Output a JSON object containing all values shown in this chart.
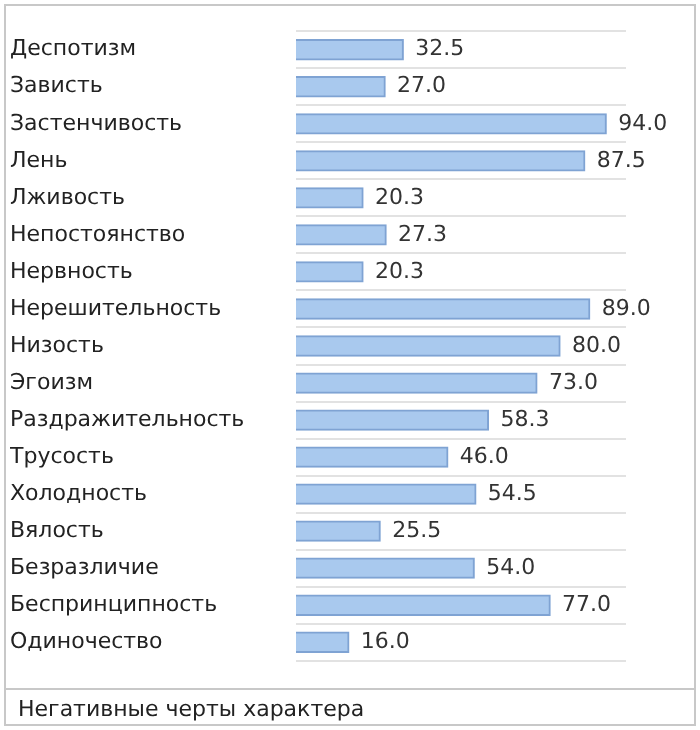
{
  "chart_data": {
    "type": "bar",
    "orientation": "horizontal",
    "categories": [
      "Деспотизм",
      "Зависть",
      "Застенчивость",
      "Лень",
      "Лживость",
      "Непостоянство",
      "Нервность",
      "Нерешительность",
      "Низость",
      "Эгоизм",
      "Раздражительность",
      "Трусость",
      "Холодность",
      "Вялость",
      "Безразличие",
      "Беспринципность",
      "Одиночество"
    ],
    "values": [
      32.5,
      27.0,
      94.0,
      87.5,
      20.3,
      27.3,
      20.3,
      89.0,
      80.0,
      73.0,
      58.3,
      46.0,
      54.5,
      25.5,
      54.0,
      77.0,
      16.0
    ],
    "value_labels": [
      "32.5",
      "27.0",
      "94.0",
      "87.5",
      "20.3",
      "27.3",
      "20.3",
      "89.0",
      "80.0",
      "73.0",
      "58.3",
      "46.0",
      "54.5",
      "25.5",
      "54.0",
      "77.0",
      "16.0"
    ],
    "color": "#a9c9ee",
    "xlim": [
      0,
      100
    ],
    "tick_labels": "y",
    "grid": "y",
    "legend": false,
    "annotations": [
      "Негативные черты характера"
    ]
  }
}
